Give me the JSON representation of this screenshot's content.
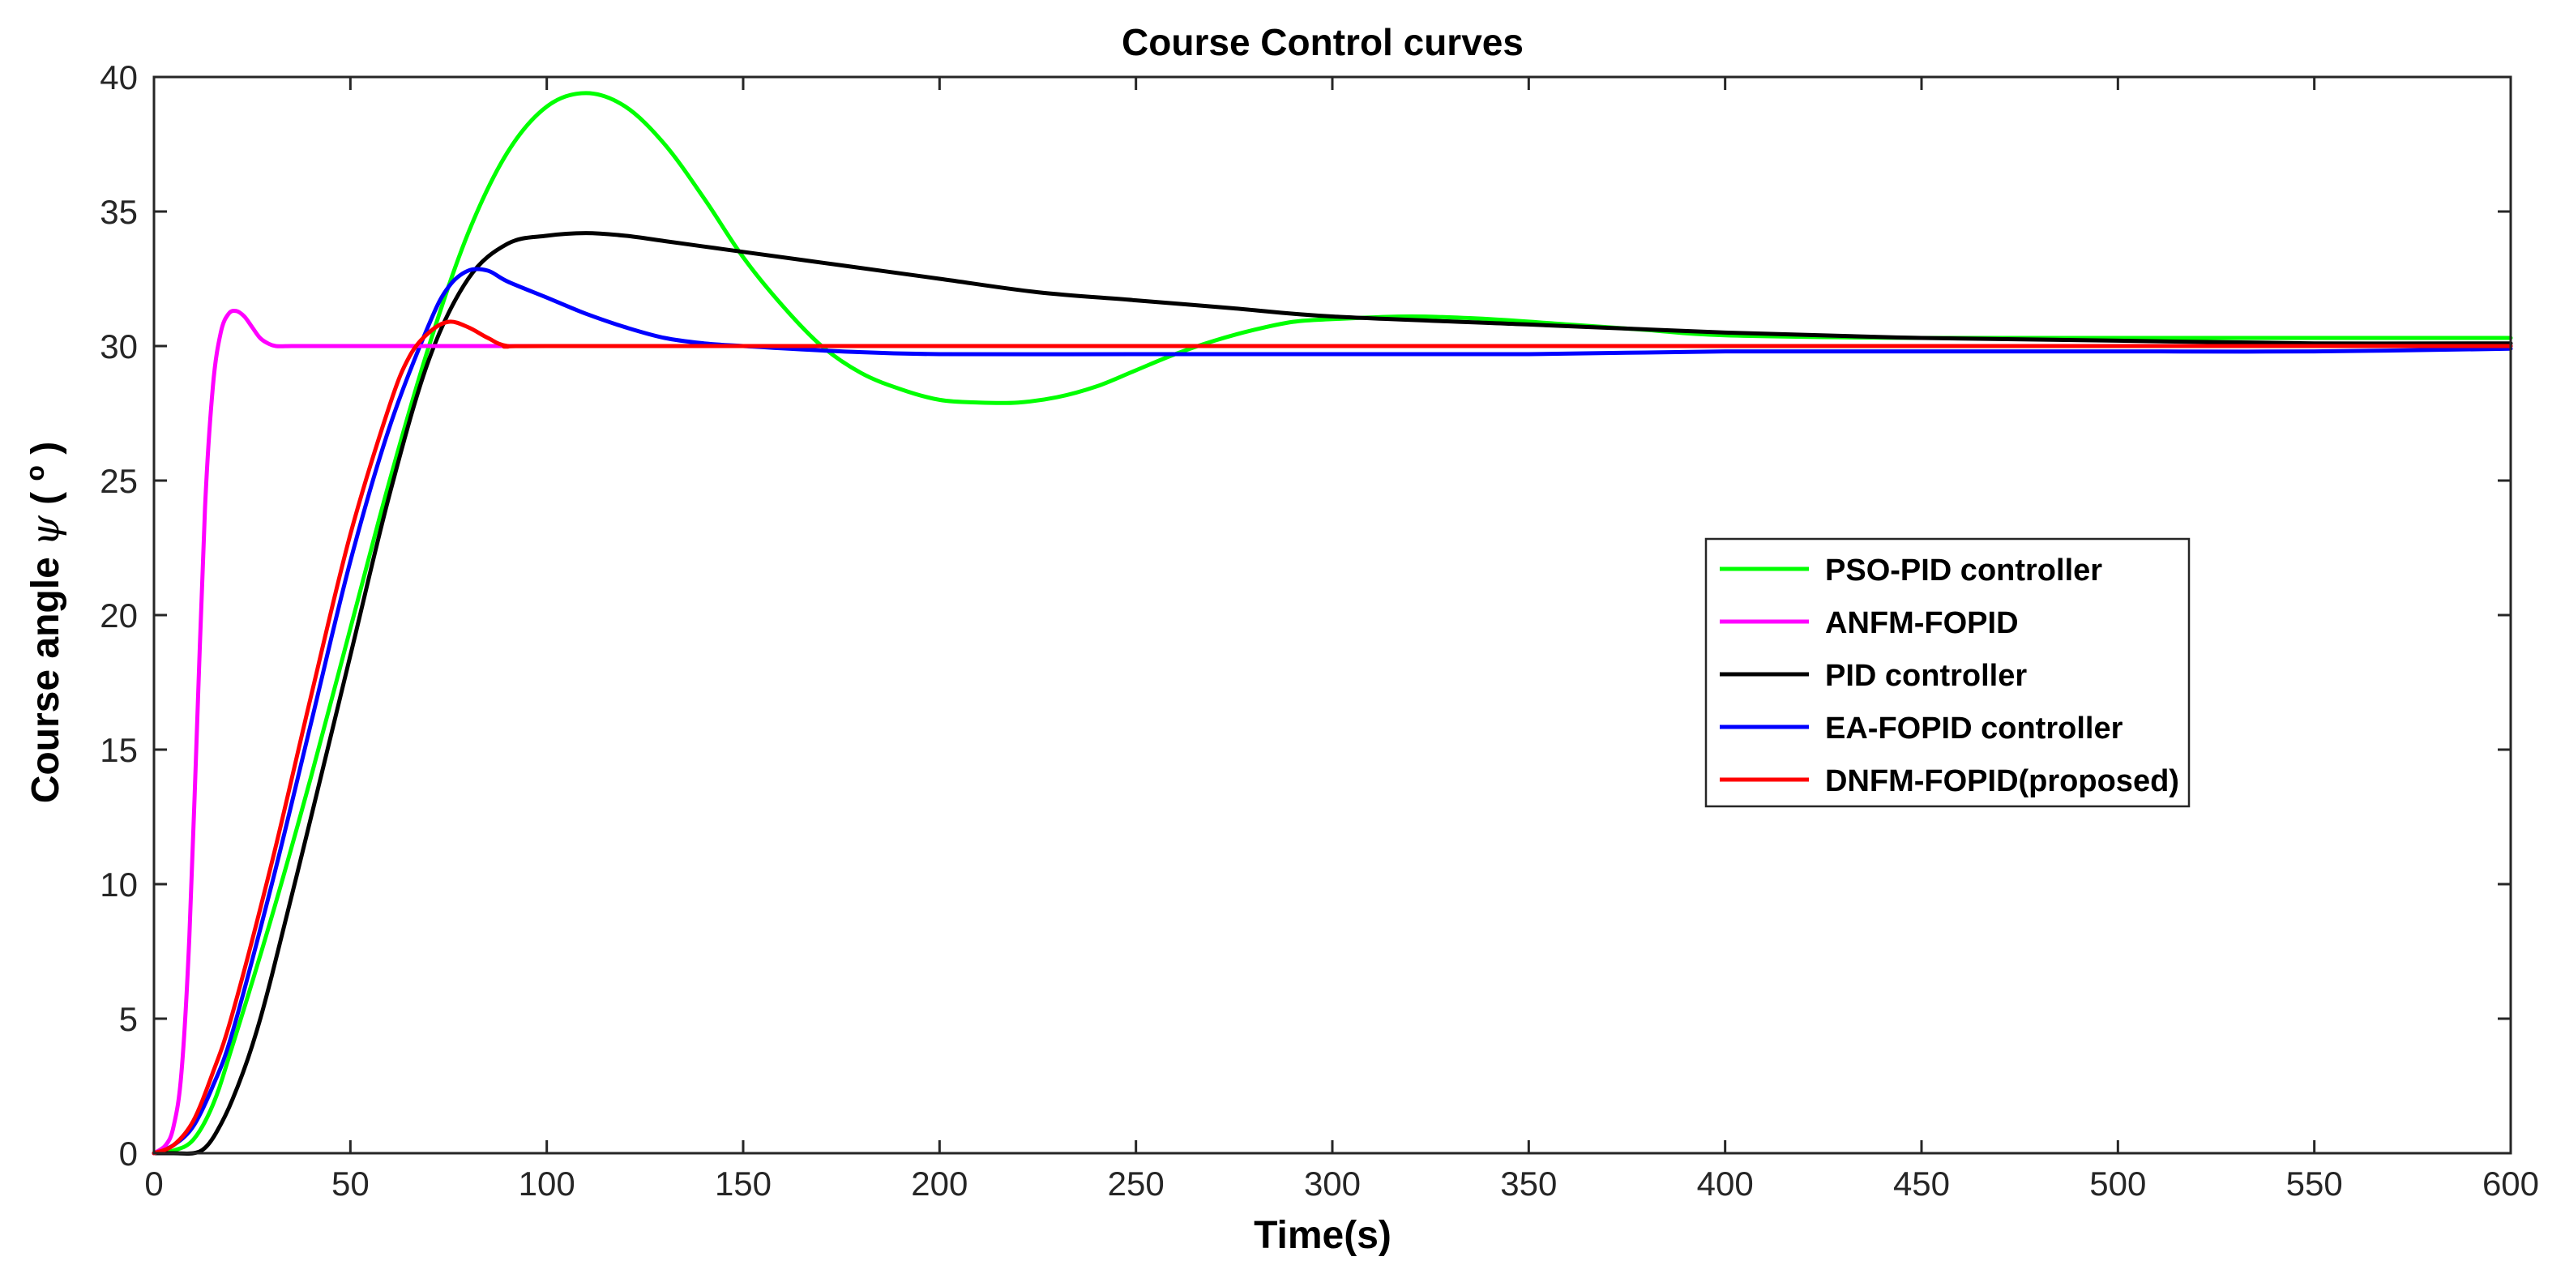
{
  "chart_data": {
    "type": "line",
    "title": "Course Control curves",
    "xlabel": "Time(s)",
    "ylabel": {
      "prefix": "Course angle ",
      "symbol": "ψ",
      "unit_open": " (",
      "unit": "o",
      "unit_close": ")"
    },
    "xlim": [
      0,
      600
    ],
    "ylim": [
      0,
      40
    ],
    "xticks": [
      0,
      50,
      100,
      150,
      200,
      250,
      300,
      350,
      400,
      450,
      500,
      550,
      600
    ],
    "yticks": [
      0,
      5,
      10,
      15,
      20,
      25,
      30,
      35,
      40
    ],
    "grid": false,
    "legend_position": "center-right",
    "series": [
      {
        "name": "PSO-PID controller",
        "color": "#00ff00",
        "x": [
          0,
          5,
          10,
          15,
          20,
          30,
          40,
          50,
          60,
          70,
          80,
          90,
          100,
          110,
          120,
          130,
          140,
          150,
          160,
          170,
          180,
          190,
          200,
          210,
          220,
          230,
          240,
          250,
          260,
          270,
          280,
          290,
          300,
          320,
          340,
          360,
          380,
          400,
          450,
          500,
          550,
          600
        ],
        "y": [
          0,
          0.1,
          0.5,
          1.8,
          4.0,
          8.8,
          14.0,
          19.5,
          25.0,
          30.0,
          34.2,
          37.2,
          38.9,
          39.4,
          38.9,
          37.5,
          35.5,
          33.3,
          31.5,
          30.0,
          29.0,
          28.4,
          28.0,
          27.9,
          27.9,
          28.1,
          28.5,
          29.1,
          29.7,
          30.2,
          30.6,
          30.9,
          31.0,
          31.1,
          31.0,
          30.8,
          30.6,
          30.4,
          30.3,
          30.3,
          30.3,
          30.3
        ]
      },
      {
        "name": "ANFM-FOPID",
        "color": "#ff00ff",
        "x": [
          0,
          3,
          5,
          7,
          9,
          11,
          13,
          15,
          17,
          19,
          21,
          23,
          25,
          27,
          29,
          31,
          35,
          40,
          50,
          100,
          200,
          300,
          400,
          500,
          600
        ],
        "y": [
          0,
          0.3,
          1.0,
          3.0,
          8.0,
          16.0,
          24.0,
          28.5,
          30.5,
          31.2,
          31.3,
          31.1,
          30.7,
          30.3,
          30.1,
          30.0,
          30.0,
          30.0,
          30.0,
          30.0,
          30.0,
          30.0,
          30.0,
          30.0,
          30.0
        ]
      },
      {
        "name": "PID controller",
        "color": "#000000",
        "x": [
          0,
          5,
          10,
          13,
          16,
          20,
          25,
          30,
          40,
          50,
          60,
          70,
          80,
          90,
          100,
          110,
          120,
          130,
          140,
          150,
          175,
          200,
          225,
          250,
          275,
          300,
          350,
          400,
          450,
          500,
          550,
          600
        ],
        "y": [
          0,
          0,
          0,
          0.2,
          0.8,
          2.0,
          4.0,
          6.6,
          12.5,
          18.5,
          24.5,
          29.5,
          32.5,
          33.8,
          34.1,
          34.2,
          34.1,
          33.9,
          33.7,
          33.5,
          33.0,
          32.5,
          32.0,
          31.7,
          31.4,
          31.1,
          30.8,
          30.5,
          30.3,
          30.2,
          30.1,
          30.1
        ]
      },
      {
        "name": "EA-FOPID controller",
        "color": "#0000ff",
        "x": [
          0,
          5,
          10,
          15,
          20,
          30,
          40,
          50,
          60,
          70,
          75,
          80,
          85,
          90,
          100,
          110,
          120,
          130,
          140,
          150,
          175,
          200,
          250,
          300,
          350,
          400,
          450,
          500,
          550,
          600
        ],
        "y": [
          0,
          0.3,
          1.0,
          2.5,
          4.5,
          10.0,
          16.0,
          22.0,
          27.0,
          30.8,
          32.2,
          32.8,
          32.8,
          32.4,
          31.8,
          31.2,
          30.7,
          30.3,
          30.1,
          30.0,
          29.8,
          29.7,
          29.7,
          29.7,
          29.7,
          29.8,
          29.8,
          29.8,
          29.8,
          29.9
        ]
      },
      {
        "name": "DNFM-FOPID(proposed)",
        "color": "#ff0000",
        "x": [
          0,
          5,
          10,
          15,
          20,
          30,
          40,
          50,
          60,
          65,
          70,
          75,
          80,
          85,
          90,
          100,
          200,
          300,
          400,
          500,
          600
        ],
        "y": [
          0,
          0.3,
          1.2,
          3.0,
          5.2,
          10.8,
          17.0,
          23.0,
          27.8,
          29.6,
          30.5,
          30.9,
          30.7,
          30.3,
          30.0,
          30.0,
          30.0,
          30.0,
          30.0,
          30.0,
          30.0
        ]
      }
    ]
  }
}
